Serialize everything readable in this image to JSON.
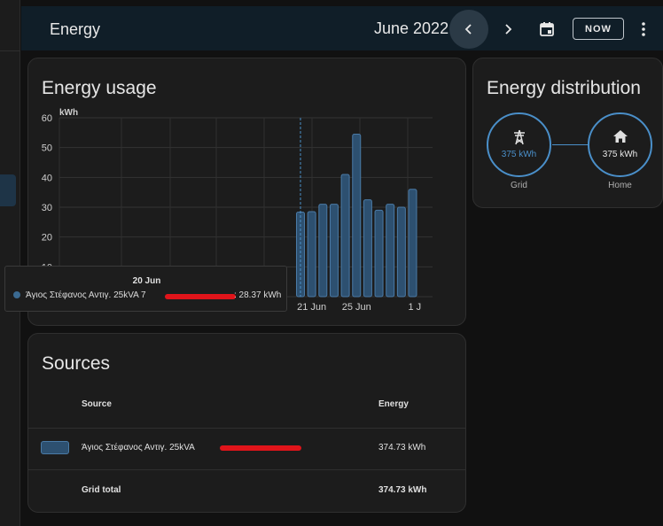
{
  "topbar": {
    "title": "Energy",
    "period": "June 2022",
    "now_label": "NOW",
    "icons": {
      "prev": "chevron-left-icon",
      "next": "chevron-right-icon",
      "calendar": "calendar-icon",
      "more": "dots-vertical-icon"
    }
  },
  "usage": {
    "title": "Energy usage"
  },
  "chart_data": {
    "type": "bar",
    "ylabel": "kWh",
    "ylim": [
      0,
      60
    ],
    "yticks": [
      0,
      10,
      20,
      30,
      40,
      50,
      60
    ],
    "x_tick_labels": [
      "21 Jun",
      "25 Jun",
      "1 J"
    ],
    "grid": true,
    "series": [
      {
        "name": "Άγιος Στέφανος Αντιγ. 25kVA",
        "color": "#3b6a91",
        "x": [
          "20 Jun",
          "21 Jun",
          "22 Jun",
          "23 Jun",
          "24 Jun",
          "25 Jun",
          "26 Jun",
          "27 Jun",
          "28 Jun",
          "29 Jun",
          "30 Jun"
        ],
        "values": [
          28.37,
          28.5,
          31,
          31,
          41,
          54.5,
          32.5,
          29,
          31,
          30,
          36
        ]
      }
    ],
    "tooltip": {
      "date": "20 Jun",
      "series_prefix": "Άγιος Στέφανος Αντιγ. 25kVA 7",
      "value_text": ": 28.37 kWh"
    }
  },
  "distribution": {
    "title": "Energy distribution",
    "grid_value": "375 kWh",
    "grid_label": "Grid",
    "home_value": "375 kWh",
    "home_label": "Home",
    "icons": {
      "grid": "transmission-tower-icon",
      "home": "home-icon"
    }
  },
  "sources": {
    "title": "Sources",
    "col_source": "Source",
    "col_energy": "Energy",
    "rows": [
      {
        "name": "Άγιος Στέφανος Αντιγ. 25kVA",
        "energy": "374.73 kWh",
        "color": "#2d5070"
      }
    ],
    "total_label": "Grid total",
    "total_energy": "374.73 kWh"
  },
  "colors": {
    "accent": "#4a8fc9",
    "bar": "#3b6a91",
    "topbar": "#101e28"
  }
}
